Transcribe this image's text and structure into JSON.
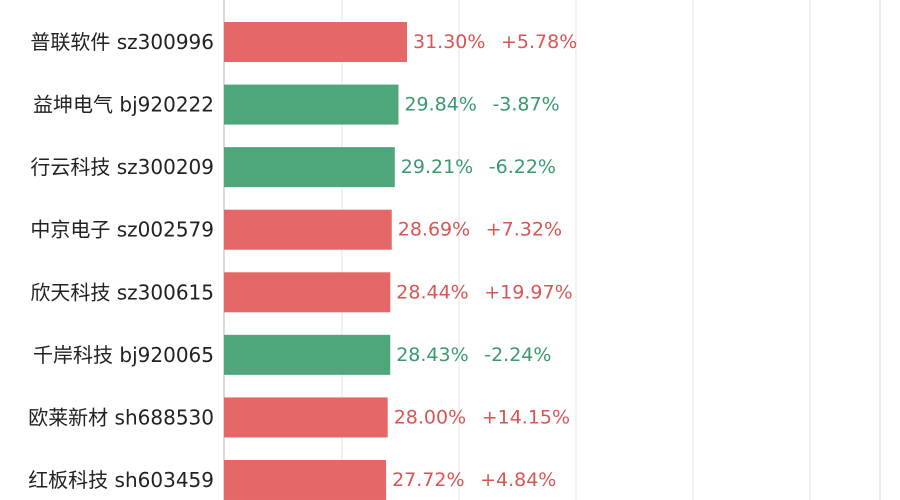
{
  "chart_data": {
    "type": "bar",
    "orientation": "horizontal",
    "title": "",
    "xlabel": "",
    "ylabel": "",
    "grid": true,
    "colors": {
      "up": "#e66767",
      "down": "#4ea67b",
      "up_text": "#d95555",
      "down_text": "#3a9a6c",
      "grid": "#e6e6e6"
    },
    "categories": [
      "普联软件  sz300996",
      "益坤电气  bj920222",
      "行云科技  sz300209",
      "中京电子  sz002579",
      "欣天科技  sz300615",
      "千岸科技  bj920065",
      "欧莱新材  sh688530",
      "红板科技  sh603459"
    ],
    "values": [
      31.3,
      29.84,
      29.21,
      28.69,
      28.44,
      28.43,
      28.0,
      27.72
    ],
    "value_labels": [
      "31.30%",
      "29.84%",
      "29.21%",
      "28.69%",
      "28.44%",
      "28.43%",
      "28.00%",
      "27.72%"
    ],
    "changes": [
      5.78,
      -3.87,
      -6.22,
      7.32,
      19.97,
      -2.24,
      14.15,
      4.84
    ],
    "change_labels": [
      "+5.78%",
      "-3.87%",
      "-6.22%",
      "+7.32%",
      "+19.97%",
      "-2.24%",
      "+14.15%",
      "+4.84%"
    ]
  }
}
